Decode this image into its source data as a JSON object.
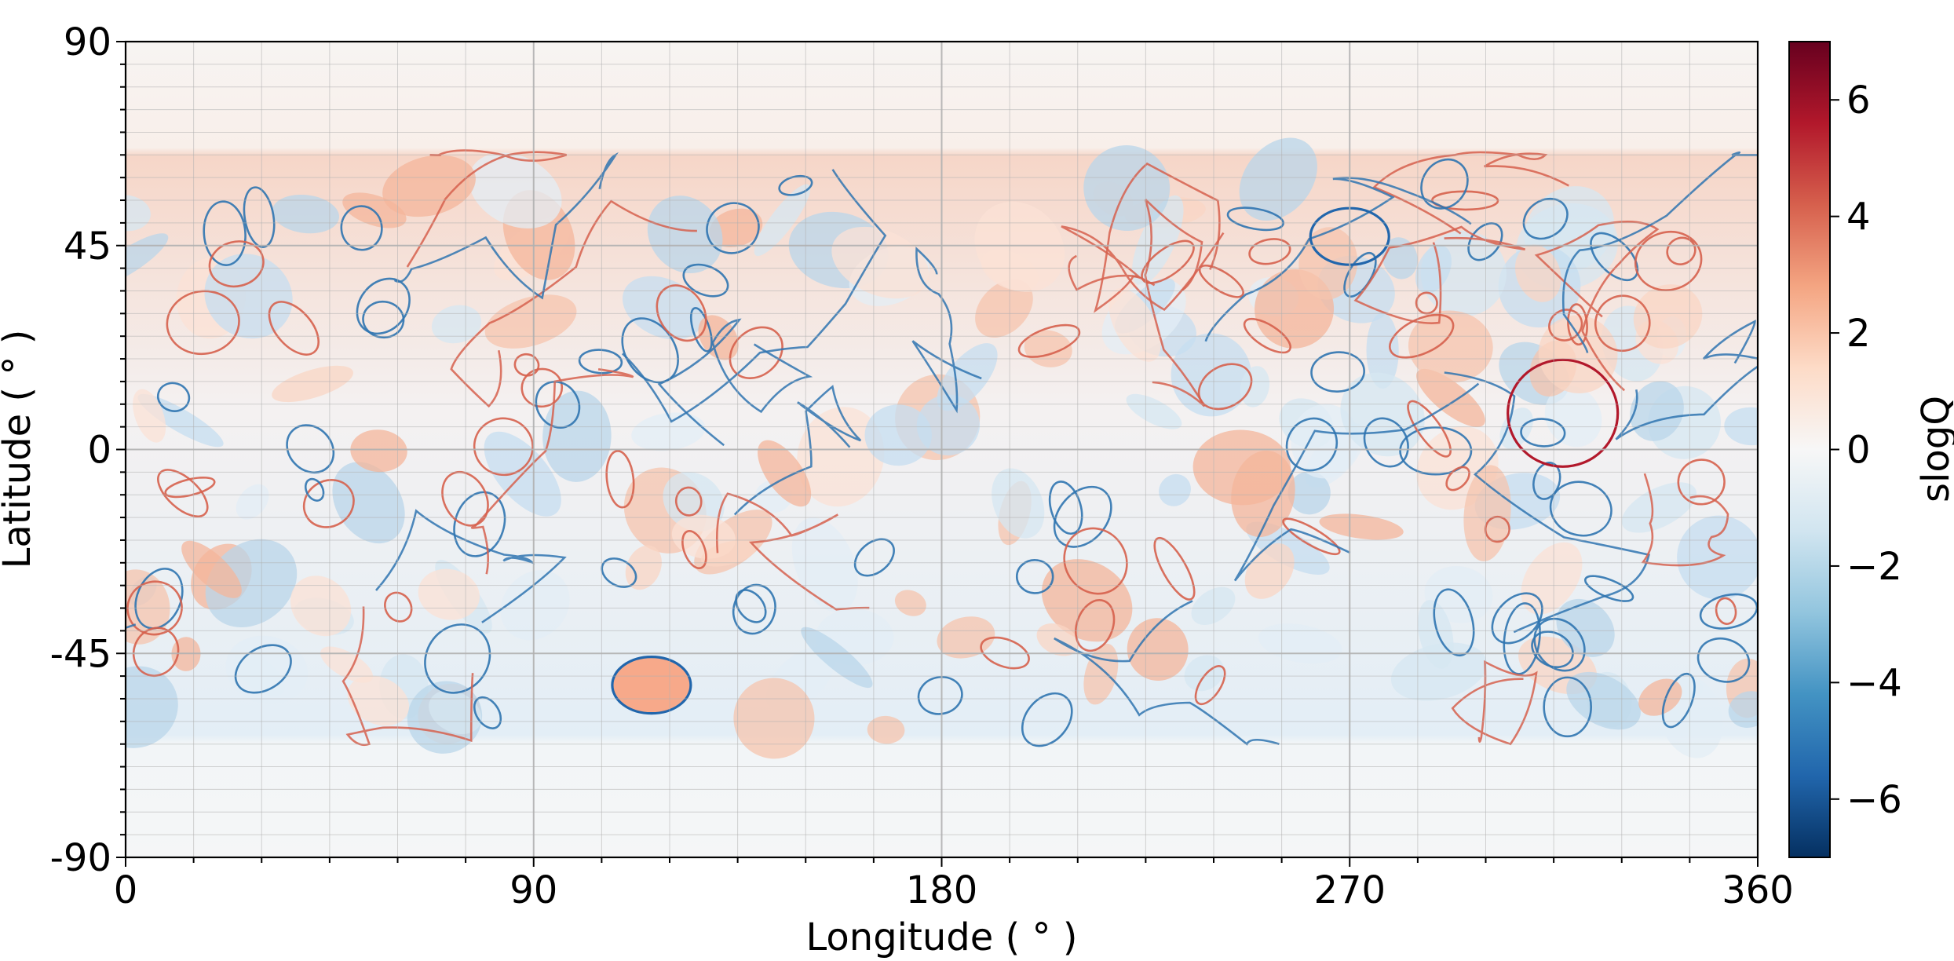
{
  "chart_data": {
    "type": "heatmap",
    "title": "",
    "xlabel": "Longitude ( ° )",
    "ylabel": "Latitude ( ° )",
    "xlim": [
      0,
      360
    ],
    "ylim": [
      -90,
      90
    ],
    "x_ticks": [
      0,
      90,
      180,
      270,
      360
    ],
    "x_tick_labels": [
      "0",
      "90",
      "180",
      "270",
      "360"
    ],
    "y_ticks": [
      90,
      45,
      0,
      -45,
      -90
    ],
    "y_tick_labels": [
      "90",
      "45",
      "0",
      "-45",
      "-90"
    ],
    "x_minor_step": 15,
    "y_minor_step": 5,
    "grid": true,
    "colormap": "RdBu_r",
    "colorbar": {
      "label": "slogQ",
      "range": [
        -7,
        7
      ],
      "ticks": [
        6,
        4,
        2,
        0,
        -2,
        -4,
        -6
      ],
      "tick_labels": [
        "6",
        "4",
        "2",
        "0",
        "−2",
        "−4",
        "−6"
      ]
    },
    "field_description": "signed log squashing factor Q over the sphere; thin blue and red boundary contours between cells, near-zero values (white) poleward of about ±68° latitude",
    "notable_features": [
      {
        "lon": 317,
        "lat": 8,
        "shape": "circle",
        "sign": "positive",
        "description": "red circular boundary"
      },
      {
        "lon": 270,
        "lat": 47,
        "shape": "oval",
        "sign": "mixed"
      },
      {
        "lon": 116,
        "lat": -52,
        "shape": "lobe",
        "sign": "negative"
      }
    ]
  },
  "colors": {
    "negative_extreme": "#053061",
    "negative_mid": "#4393c3",
    "near_zero": "#f7f7f7",
    "positive_mid": "#f4a582",
    "positive_extreme": "#67001f",
    "grid": "#b0b0b0",
    "frame": "#000000"
  }
}
